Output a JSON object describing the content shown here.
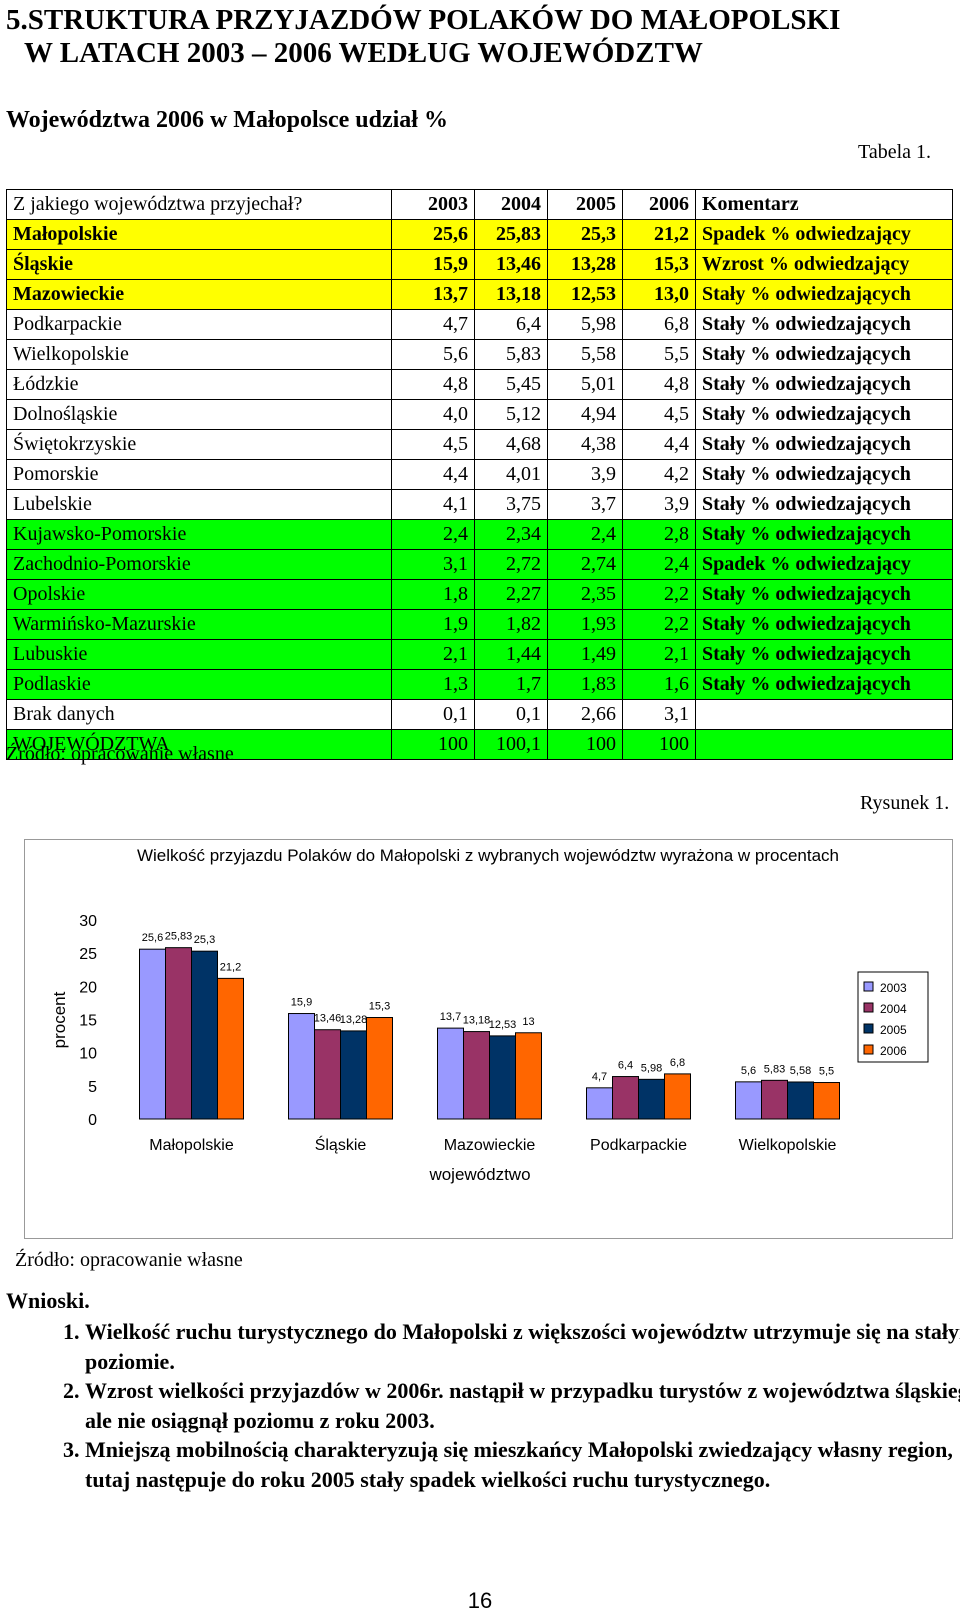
{
  "heading": {
    "line1": "5.STRUKTURA PRZYJAZDÓW POLAKÓW DO MAŁOPOLSKI",
    "line2": "W LATACH 2003 – 2006 WEDŁUG WOJEWÓDZTW"
  },
  "subheading": "Województwa 2006 w Małopolsce udział %",
  "table_label": "Tabela 1.",
  "table": {
    "headers": [
      "Z jakiego województwa przyjechał?",
      "2003",
      "2004",
      "2005",
      "2006",
      "Komentarz"
    ],
    "rows": [
      {
        "name": "Małopolskie",
        "v": [
          "25,6",
          "25,83",
          "25,3",
          "21,2"
        ],
        "comment": "Spadek  % odwiedzający",
        "style": "y"
      },
      {
        "name": "Śląskie",
        "v": [
          "15,9",
          "13,46",
          "13,28",
          "15,3"
        ],
        "comment": "Wzrost  % odwiedzający",
        "style": "y"
      },
      {
        "name": "Mazowieckie",
        "v": [
          "13,7",
          "13,18",
          "12,53",
          "13,0"
        ],
        "comment": "Stały % odwiedzających",
        "style": "y"
      },
      {
        "name": "Podkarpackie",
        "v": [
          "4,7",
          "6,4",
          "5,98",
          "6,8"
        ],
        "comment": "Stały % odwiedzających",
        "style": "w"
      },
      {
        "name": "Wielkopolskie",
        "v": [
          "5,6",
          "5,83",
          "5,58",
          "5,5"
        ],
        "comment": "Stały % odwiedzających",
        "style": "w"
      },
      {
        "name": "Łódzkie",
        "v": [
          "4,8",
          "5,45",
          "5,01",
          "4,8"
        ],
        "comment": "Stały % odwiedzających",
        "style": "w"
      },
      {
        "name": "Dolnośląskie",
        "v": [
          "4,0",
          "5,12",
          "4,94",
          "4,5"
        ],
        "comment": "Stały % odwiedzających",
        "style": "w"
      },
      {
        "name": "Świętokrzyskie",
        "v": [
          "4,5",
          "4,68",
          "4,38",
          "4,4"
        ],
        "comment": "Stały % odwiedzających",
        "style": "w"
      },
      {
        "name": "Pomorskie",
        "v": [
          "4,4",
          "4,01",
          "3,9",
          "4,2"
        ],
        "comment": "Stały % odwiedzających",
        "style": "w"
      },
      {
        "name": "Lubelskie",
        "v": [
          "4,1",
          "3,75",
          "3,7",
          "3,9"
        ],
        "comment": "Stały % odwiedzających",
        "style": "w"
      },
      {
        "name": "Kujawsko-Pomorskie",
        "v": [
          "2,4",
          "2,34",
          "2,4",
          "2,8"
        ],
        "comment": "Stały % odwiedzających",
        "style": "g"
      },
      {
        "name": "Zachodnio-Pomorskie",
        "v": [
          "3,1",
          "2,72",
          "2,74",
          "2,4"
        ],
        "comment": "Spadek  % odwiedzający",
        "style": "g"
      },
      {
        "name": "Opolskie",
        "v": [
          "1,8",
          "2,27",
          "2,35",
          "2,2"
        ],
        "comment": "Stały % odwiedzających",
        "style": "g"
      },
      {
        "name": "Warmińsko-Mazurskie",
        "v": [
          "1,9",
          "1,82",
          "1,93",
          "2,2"
        ],
        "comment": "Stały % odwiedzających",
        "style": "g"
      },
      {
        "name": "Lubuskie",
        "v": [
          "2,1",
          "1,44",
          "1,49",
          "2,1"
        ],
        "comment": "Stały % odwiedzających",
        "style": "g"
      },
      {
        "name": "Podlaskie",
        "v": [
          "1,3",
          "1,7",
          "1,83",
          "1,6"
        ],
        "comment": "Stały % odwiedzających",
        "style": "g"
      },
      {
        "name": "Brak danych",
        "v": [
          "0,1",
          "0,1",
          "2,66",
          "3,1"
        ],
        "comment": "",
        "style": "w"
      },
      {
        "name": "WOJEWÓDZTWA",
        "v": [
          "100",
          "100,1",
          "100",
          "100"
        ],
        "comment": "",
        "style": "g"
      }
    ]
  },
  "source_label": "Źródło: opracowanie własne",
  "figure_label": "Rysunek 1.",
  "chart_data": {
    "type": "bar",
    "title": "Wielkość przyjazdu Polaków do Małopolski z wybranych województw wyrażona w procentach",
    "xlabel": "województwo",
    "ylabel": "procent",
    "ylim": [
      0,
      30
    ],
    "yticks": [
      "0",
      "5",
      "10",
      "15",
      "20",
      "25",
      "30"
    ],
    "grid": false,
    "legend_position": "right",
    "categories": [
      "Małopolskie",
      "Śląskie",
      "Mazowieckie",
      "Podkarpackie",
      "Wielkopolskie"
    ],
    "series": [
      {
        "name": "2003",
        "color": "#9999ff",
        "values": [
          25.6,
          15.9,
          13.7,
          4.7,
          5.6
        ],
        "labels": [
          "25,6",
          "15,9",
          "13,7",
          "4,7",
          "5,6"
        ]
      },
      {
        "name": "2004",
        "color": "#993366",
        "values": [
          25.83,
          13.46,
          13.18,
          6.4,
          5.83
        ],
        "labels": [
          "25,83",
          "13,46",
          "13,18",
          "6,4",
          "5,83"
        ]
      },
      {
        "name": "2005",
        "color": "#003366",
        "values": [
          25.3,
          13.28,
          12.53,
          5.98,
          5.58
        ],
        "labels": [
          "25,3",
          "13,28",
          "12,53",
          "5,98",
          "5,58"
        ]
      },
      {
        "name": "2006",
        "color": "#ff6600",
        "values": [
          21.2,
          15.3,
          13,
          6.8,
          5.5
        ],
        "labels": [
          "21,2",
          "15,3",
          "13",
          "6,8",
          "5,5"
        ]
      }
    ]
  },
  "conclusions": {
    "title": "Wnioski.",
    "items": [
      "Wielkość ruchu turystycznego do Małopolski z większości województw utrzymuje się na stałym poziomie.",
      "Wzrost wielkości przyjazdów w 2006r. nastąpił w przypadku turystów z województwa śląskiego, ale nie osiągnął poziomu z roku 2003.",
      "Mniejszą mobilnością charakteryzują się mieszkańcy Małopolski zwiedzający własny region, tutaj następuje do roku 2005 stały spadek wielkości ruchu turystycznego."
    ]
  },
  "page_number": "16"
}
